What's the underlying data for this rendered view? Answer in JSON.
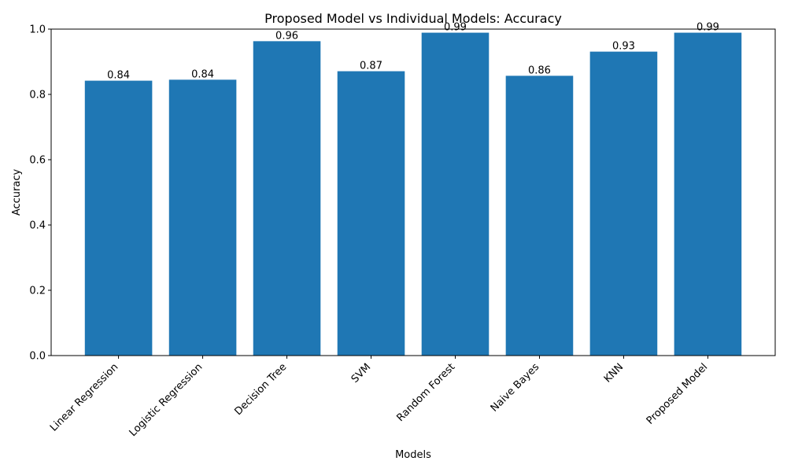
{
  "chart_data": {
    "type": "bar",
    "title": "Proposed Model vs Individual Models: Accuracy",
    "xlabel": "Models",
    "ylabel": "Accuracy",
    "ylim": [
      0,
      1.0
    ],
    "yticks": [
      "0.0",
      "0.2",
      "0.4",
      "0.6",
      "0.8",
      "1.0"
    ],
    "grid": false,
    "bar_color": "#1f77b4",
    "categories": [
      "Linear Regression",
      "Logistic Regression",
      "Decision Tree",
      "SVM",
      "Random Forest",
      "Naive Bayes",
      "KNN",
      "Proposed Model"
    ],
    "values": [
      0.842,
      0.845,
      0.963,
      0.871,
      0.989,
      0.857,
      0.931,
      0.989
    ],
    "data_labels": [
      "0.84",
      "0.84",
      "0.96",
      "0.87",
      "0.99",
      "0.86",
      "0.93",
      "0.99"
    ]
  }
}
